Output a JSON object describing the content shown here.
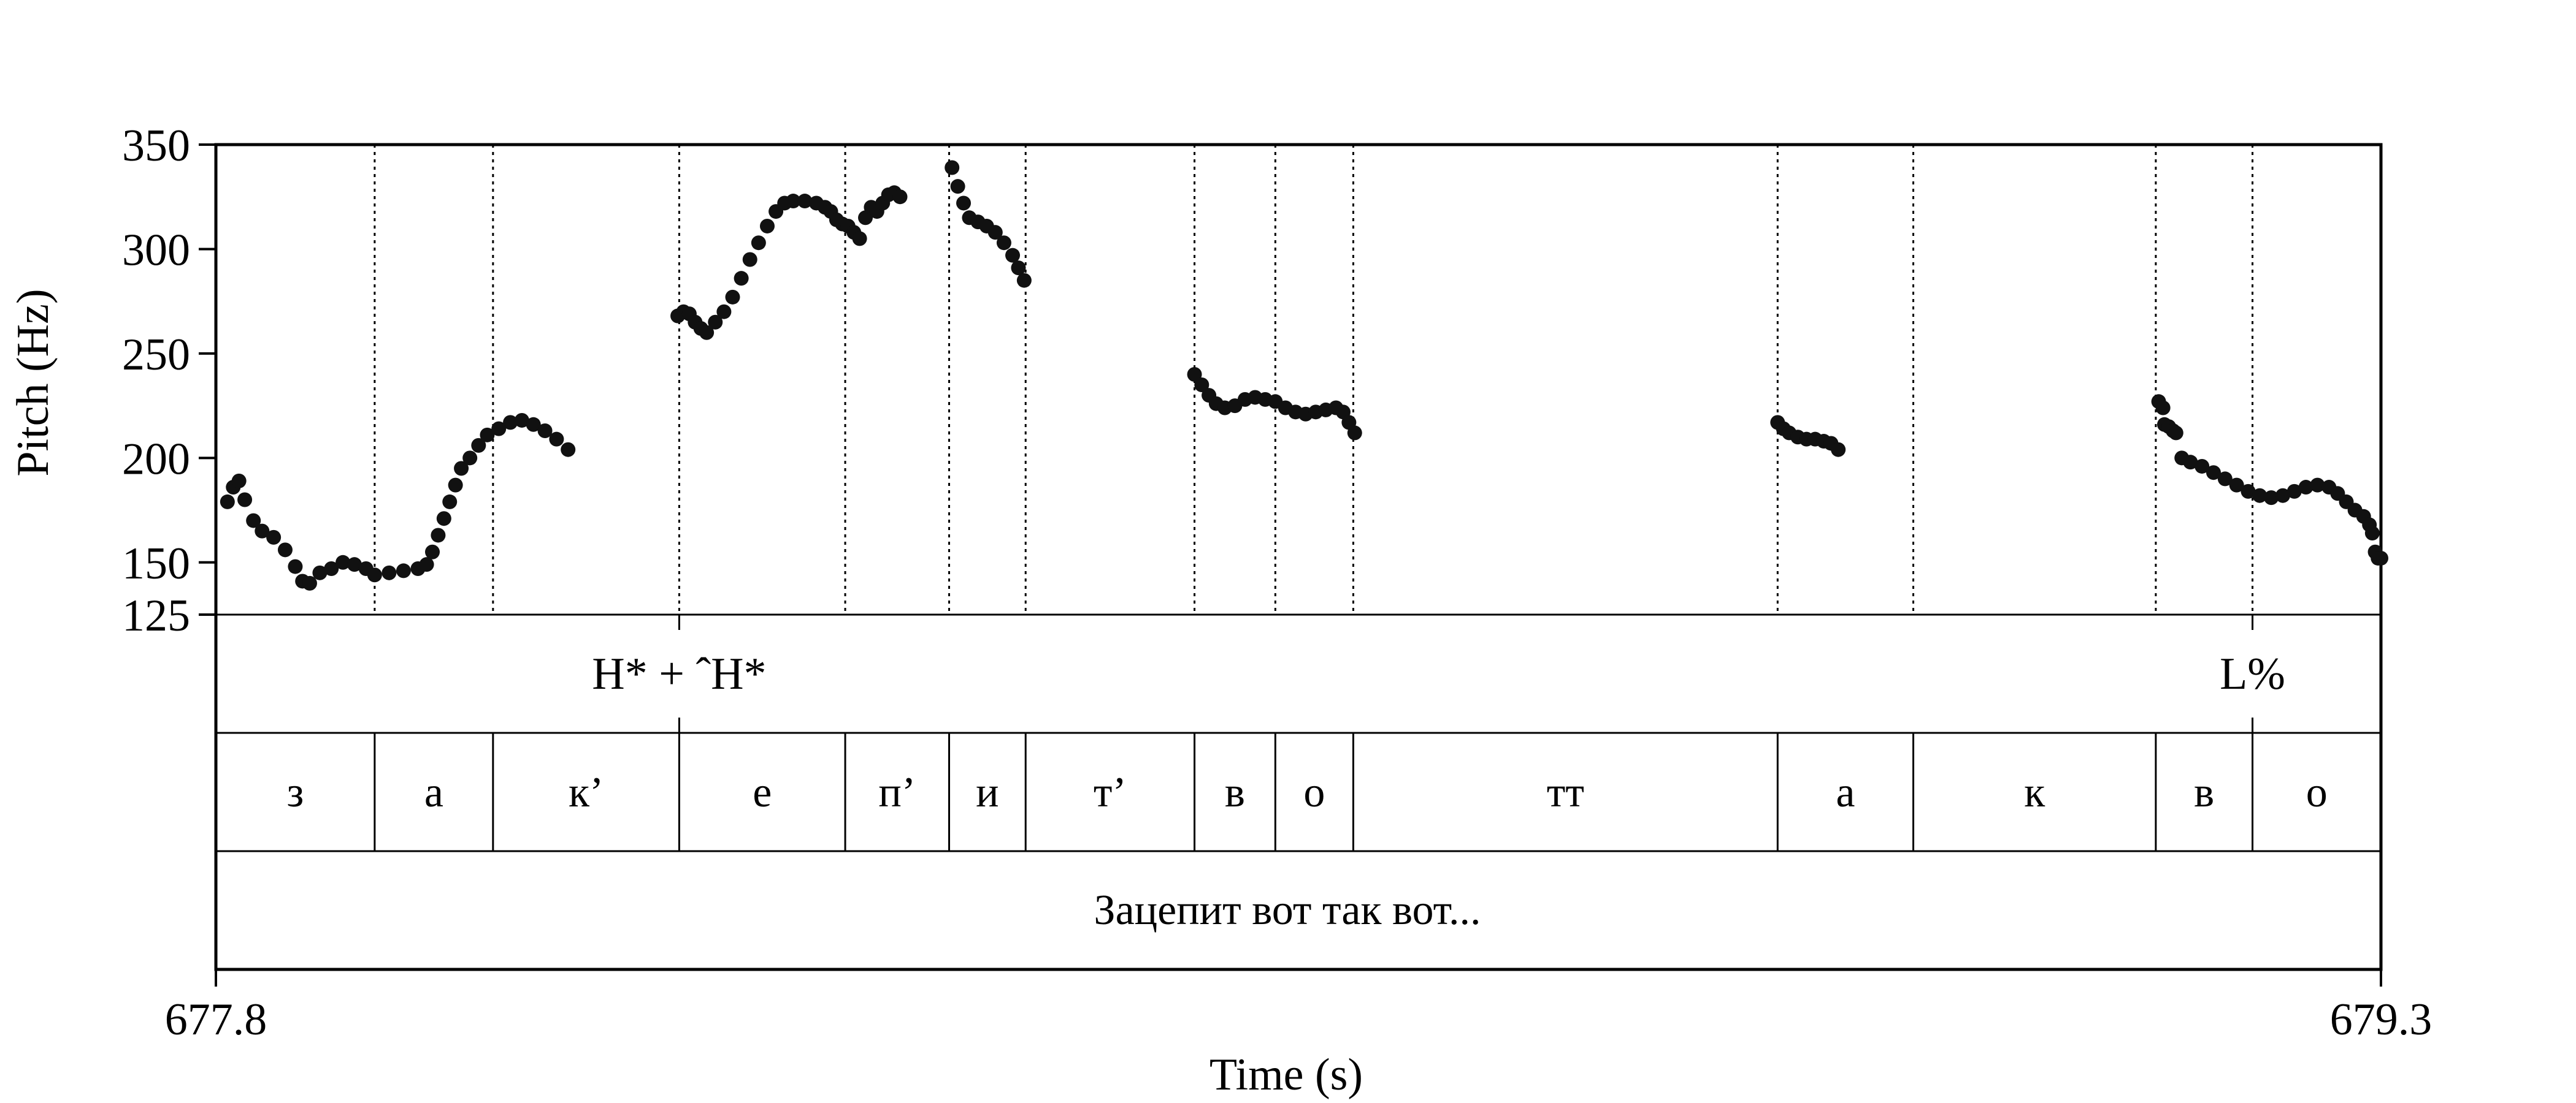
{
  "chart_data": {
    "type": "scatter",
    "xlabel": "Time (s)",
    "ylabel": "Pitch (Hz)",
    "xlim": [
      677.8,
      679.3
    ],
    "ylim": [
      125,
      350
    ],
    "x_tick_labels": [
      "677.8",
      "679.3"
    ],
    "y_ticks": [
      {
        "value": 350,
        "label": "350"
      },
      {
        "value": 300,
        "label": "300"
      },
      {
        "value": 250,
        "label": "250"
      },
      {
        "value": 200,
        "label": "200"
      },
      {
        "value": 150,
        "label": "150"
      },
      {
        "value": 125,
        "label": "125"
      }
    ],
    "grid": false,
    "boundaries": [
      677.91,
      677.992,
      678.121,
      678.236,
      678.308,
      678.361,
      678.478,
      678.534,
      678.588,
      678.882,
      678.976,
      679.144,
      679.211
    ],
    "tones": [
      {
        "time": 678.121,
        "label": "H* + ˆH*"
      },
      {
        "time": 679.211,
        "label": "L%"
      }
    ],
    "segments": [
      {
        "start": 677.8,
        "end": 677.91,
        "label": "з"
      },
      {
        "start": 677.91,
        "end": 677.992,
        "label": "а"
      },
      {
        "start": 677.992,
        "end": 678.121,
        "label": "к’"
      },
      {
        "start": 678.121,
        "end": 678.236,
        "label": "е"
      },
      {
        "start": 678.236,
        "end": 678.308,
        "label": "п’"
      },
      {
        "start": 678.308,
        "end": 678.361,
        "label": "и"
      },
      {
        "start": 678.361,
        "end": 678.478,
        "label": "т’"
      },
      {
        "start": 678.478,
        "end": 678.534,
        "label": "в"
      },
      {
        "start": 678.534,
        "end": 678.588,
        "label": "о"
      },
      {
        "start": 678.588,
        "end": 678.882,
        "label": "тт"
      },
      {
        "start": 678.882,
        "end": 678.976,
        "label": "а"
      },
      {
        "start": 678.976,
        "end": 679.144,
        "label": "к"
      },
      {
        "start": 679.144,
        "end": 679.211,
        "label": "в"
      },
      {
        "start": 679.211,
        "end": 679.3,
        "label": "о"
      }
    ],
    "sentence": "Зацепит вот так вот...",
    "series": [
      {
        "points": [
          [
            677.808,
            179
          ],
          [
            677.812,
            186
          ],
          [
            677.816,
            189
          ],
          [
            677.82,
            180
          ],
          [
            677.826,
            170
          ],
          [
            677.832,
            165
          ],
          [
            677.84,
            162
          ],
          [
            677.848,
            156
          ],
          [
            677.855,
            148
          ],
          [
            677.86,
            141
          ],
          [
            677.865,
            140
          ],
          [
            677.872,
            145
          ],
          [
            677.88,
            147
          ],
          [
            677.888,
            150
          ],
          [
            677.896,
            149
          ],
          [
            677.904,
            147
          ],
          [
            677.91,
            144
          ],
          [
            677.92,
            145
          ],
          [
            677.93,
            146
          ],
          [
            677.94,
            147
          ],
          [
            677.946,
            149
          ],
          [
            677.95,
            155
          ],
          [
            677.954,
            163
          ],
          [
            677.958,
            171
          ],
          [
            677.962,
            179
          ],
          [
            677.966,
            187
          ],
          [
            677.97,
            195
          ],
          [
            677.976,
            200
          ],
          [
            677.982,
            206
          ],
          [
            677.988,
            211
          ],
          [
            677.996,
            214
          ],
          [
            678.004,
            217
          ],
          [
            678.012,
            218
          ],
          [
            678.02,
            216
          ],
          [
            678.028,
            213
          ],
          [
            678.036,
            209
          ],
          [
            678.044,
            204
          ]
        ]
      },
      {
        "points": [
          [
            678.12,
            268
          ],
          [
            678.124,
            270
          ],
          [
            678.128,
            269
          ],
          [
            678.132,
            265
          ],
          [
            678.136,
            262
          ],
          [
            678.14,
            260
          ],
          [
            678.146,
            265
          ],
          [
            678.152,
            270
          ],
          [
            678.158,
            277
          ],
          [
            678.164,
            286
          ],
          [
            678.17,
            295
          ],
          [
            678.176,
            303
          ],
          [
            678.182,
            311
          ],
          [
            678.188,
            318
          ],
          [
            678.194,
            322
          ],
          [
            678.2,
            323
          ],
          [
            678.208,
            323
          ],
          [
            678.216,
            322
          ],
          [
            678.222,
            320
          ],
          [
            678.226,
            318
          ],
          [
            678.23,
            314
          ],
          [
            678.234,
            312
          ],
          [
            678.238,
            311
          ],
          [
            678.242,
            308
          ],
          [
            678.246,
            305
          ],
          [
            678.25,
            315
          ],
          [
            678.254,
            320
          ],
          [
            678.258,
            318
          ],
          [
            678.262,
            322
          ],
          [
            678.266,
            326
          ],
          [
            678.27,
            327
          ],
          [
            678.274,
            325
          ]
        ]
      },
      {
        "points": [
          [
            678.31,
            339
          ],
          [
            678.314,
            330
          ],
          [
            678.318,
            322
          ],
          [
            678.322,
            315
          ],
          [
            678.328,
            313
          ],
          [
            678.334,
            311
          ],
          [
            678.34,
            308
          ],
          [
            678.346,
            303
          ],
          [
            678.352,
            297
          ],
          [
            678.356,
            291
          ],
          [
            678.36,
            285
          ]
        ]
      },
      {
        "points": [
          [
            678.478,
            240
          ],
          [
            678.483,
            235
          ],
          [
            678.488,
            230
          ],
          [
            678.493,
            226
          ],
          [
            678.499,
            224
          ],
          [
            678.506,
            225
          ],
          [
            678.513,
            228
          ],
          [
            678.52,
            229
          ],
          [
            678.527,
            228
          ],
          [
            678.534,
            227
          ],
          [
            678.541,
            224
          ],
          [
            678.548,
            222
          ],
          [
            678.555,
            221
          ],
          [
            678.562,
            222
          ],
          [
            678.569,
            223
          ],
          [
            678.576,
            224
          ],
          [
            678.581,
            222
          ],
          [
            678.585,
            217
          ],
          [
            678.589,
            212
          ]
        ]
      },
      {
        "points": [
          [
            678.882,
            217
          ],
          [
            678.886,
            214
          ],
          [
            678.89,
            212
          ],
          [
            678.896,
            210
          ],
          [
            678.902,
            209
          ],
          [
            678.908,
            209
          ],
          [
            678.914,
            208
          ],
          [
            678.919,
            207
          ],
          [
            678.924,
            204
          ]
        ]
      },
      {
        "points": [
          [
            679.146,
            227
          ],
          [
            679.149,
            224
          ],
          [
            679.15,
            216
          ],
          [
            679.153,
            215
          ],
          [
            679.156,
            213
          ],
          [
            679.158,
            212
          ],
          [
            679.162,
            200
          ],
          [
            679.168,
            198
          ],
          [
            679.176,
            196
          ],
          [
            679.184,
            193
          ],
          [
            679.192,
            190
          ],
          [
            679.2,
            187
          ],
          [
            679.208,
            184
          ],
          [
            679.216,
            182
          ],
          [
            679.224,
            181
          ],
          [
            679.232,
            182
          ],
          [
            679.24,
            184
          ],
          [
            679.248,
            186
          ],
          [
            679.256,
            187
          ],
          [
            679.264,
            186
          ],
          [
            679.27,
            183
          ],
          [
            679.276,
            179
          ],
          [
            679.282,
            175
          ],
          [
            679.288,
            172
          ],
          [
            679.292,
            168
          ],
          [
            679.294,
            164
          ],
          [
            679.296,
            155
          ],
          [
            679.298,
            152
          ],
          [
            679.3,
            152
          ]
        ]
      }
    ]
  }
}
